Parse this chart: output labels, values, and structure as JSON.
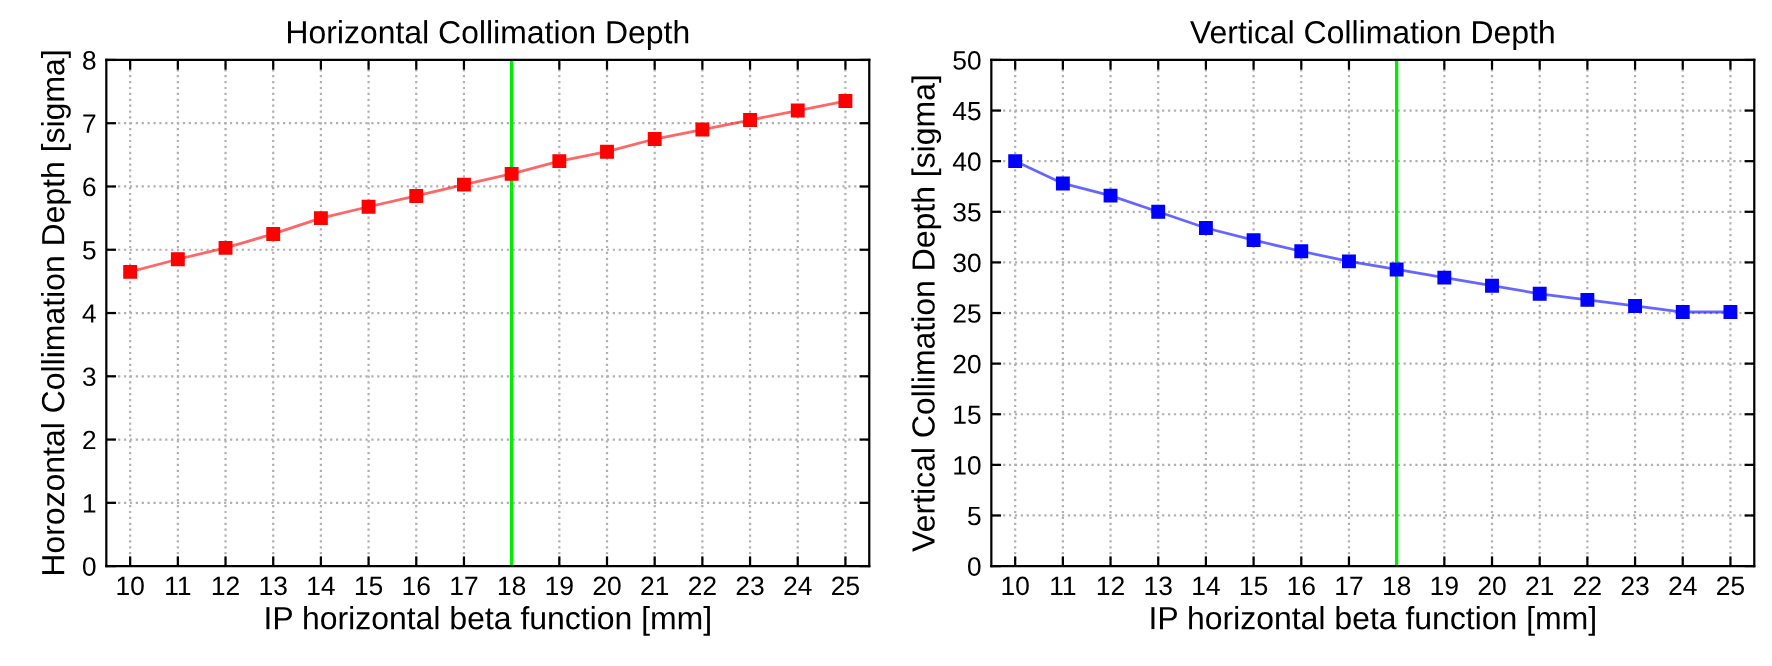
{
  "chart_data": [
    {
      "type": "line",
      "title": "Horizontal Collimation Depth",
      "xlabel": "IP horizontal beta function [mm]",
      "ylabel": "Horozontal Collimation Depth [sigma]",
      "x": [
        10,
        11,
        12,
        13,
        14,
        15,
        16,
        17,
        18,
        19,
        20,
        21,
        22,
        23,
        24,
        25
      ],
      "series": [
        {
          "color": "#ff0000",
          "values": [
            4.65,
            4.85,
            5.03,
            5.25,
            5.5,
            5.68,
            5.85,
            6.03,
            6.2,
            6.4,
            6.55,
            6.75,
            6.9,
            7.05,
            7.2,
            7.35
          ]
        }
      ],
      "xlim": [
        9.5,
        25.5
      ],
      "xticks": [
        10,
        11,
        12,
        13,
        14,
        15,
        16,
        17,
        18,
        19,
        20,
        21,
        22,
        23,
        24,
        25
      ],
      "ylim": [
        0,
        8
      ],
      "yticks": [
        0,
        1,
        2,
        3,
        4,
        5,
        6,
        7,
        8
      ],
      "ref_lines": [
        {
          "axis": "x",
          "value": 18,
          "color": "#00ee00"
        }
      ],
      "grid": true,
      "marker": "square",
      "line_style": "solid"
    },
    {
      "type": "line",
      "title": "Vertical Collimation Depth",
      "xlabel": "IP horizontal beta function [mm]",
      "ylabel": "Vertical Collimation Depth [sigma]",
      "x": [
        10,
        11,
        12,
        13,
        14,
        15,
        16,
        17,
        18,
        19,
        20,
        21,
        22,
        23,
        24,
        25
      ],
      "series": [
        {
          "color": "#0000ff",
          "values": [
            40,
            37.8,
            36.6,
            35,
            33.4,
            32.2,
            31.1,
            30.1,
            29.3,
            28.5,
            27.7,
            26.9,
            26.3,
            25.7,
            25.1,
            25.1
          ]
        }
      ],
      "xlim": [
        9.5,
        25.5
      ],
      "xticks": [
        10,
        11,
        12,
        13,
        14,
        15,
        16,
        17,
        18,
        19,
        20,
        21,
        22,
        23,
        24,
        25
      ],
      "ylim": [
        0,
        50
      ],
      "yticks": [
        0,
        5,
        10,
        15,
        20,
        25,
        30,
        35,
        40,
        45,
        50
      ],
      "ref_lines": [
        {
          "axis": "x",
          "value": 18,
          "color": "#00ee00"
        }
      ],
      "grid": true,
      "marker": "square",
      "line_style": "solid"
    }
  ]
}
